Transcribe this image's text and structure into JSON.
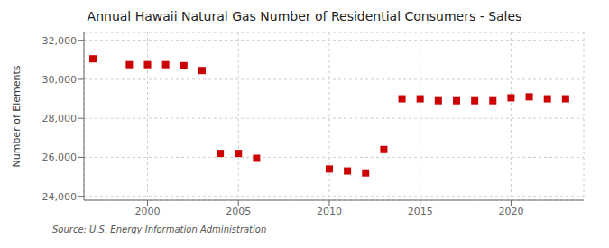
{
  "chart_data": {
    "type": "scatter",
    "title": "Annual Hawaii Natural Gas Number of Residential Consumers - Sales",
    "ylabel": "Number of Elements",
    "annotations": [
      "Source: U.S. Energy Information Administration"
    ],
    "x": [
      1997,
      1999,
      2000,
      2001,
      2002,
      2003,
      2004,
      2005,
      2006,
      2010,
      2011,
      2012,
      2013,
      2014,
      2015,
      2016,
      2017,
      2018,
      2019,
      2020,
      2021,
      2022,
      2023
    ],
    "values": [
      31050,
      30750,
      30750,
      30750,
      30700,
      30450,
      26200,
      26200,
      25950,
      25400,
      25300,
      25200,
      26400,
      29000,
      29000,
      28900,
      28900,
      28900,
      28900,
      29050,
      29100,
      29000,
      29000
    ],
    "color": "#cc0000",
    "marker": "square",
    "xlim": [
      1996.5,
      2024
    ],
    "xticks": [
      2000,
      2005,
      2010,
      2015,
      2020
    ],
    "ylim": [
      23800,
      32400
    ],
    "yticks": [
      {
        "value": 24000,
        "label": "24,000"
      },
      {
        "value": 26000,
        "label": "26,000"
      },
      {
        "value": 28000,
        "label": "28,000"
      },
      {
        "value": 30000,
        "label": "30,000"
      },
      {
        "value": 32000,
        "label": "32,000"
      }
    ],
    "grid": true
  }
}
